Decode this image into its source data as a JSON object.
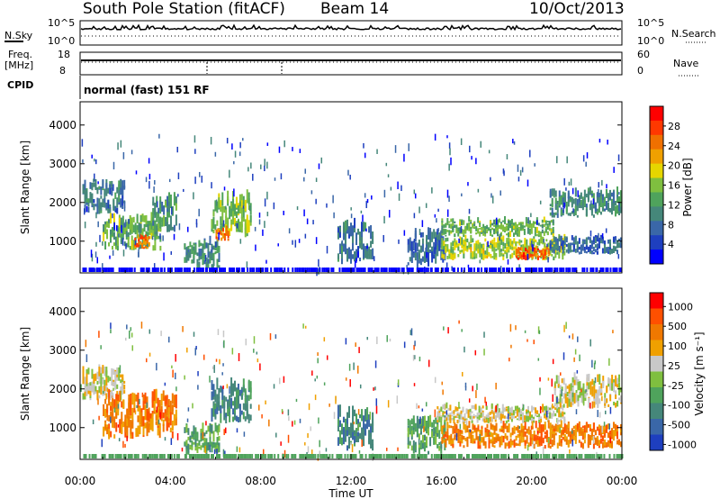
{
  "header": {
    "station": "South Pole Station (fitACF)",
    "beam": "Beam 14",
    "date": "10/Oct/2013"
  },
  "noise_panel": {
    "left_label": "N.Sky",
    "right_label": "N.Search",
    "left_ticks": [
      "10^5",
      "10^0"
    ],
    "right_ticks": [
      "10^5",
      "10^0"
    ]
  },
  "freq_panel": {
    "left_label_1": "Freq.",
    "left_label_2": "[MHz]",
    "right_label": "Nave",
    "left_ticks": [
      "18",
      "8"
    ],
    "right_ticks": [
      "60",
      "0"
    ]
  },
  "cpid": {
    "label": "CPID",
    "value": "normal (fast) 151 RF"
  },
  "colors": {
    "power": [
      "#0000ff",
      "#1e3fbf",
      "#3a67a8",
      "#45877a",
      "#4fa35c",
      "#7fbf3f",
      "#e6d600",
      "#f0a000",
      "#f07000",
      "#ff3800",
      "#ff0000"
    ],
    "velocity": [
      "#1e3fbf",
      "#3a67a8",
      "#45877a",
      "#4fa35c",
      "#7fbf3f",
      "#c8c8c8",
      "#f0a000",
      "#f07800",
      "#ff5000",
      "#ff0000"
    ]
  },
  "chart_data": [
    {
      "type": "heatmap",
      "name": "Power",
      "ylabel": "Slant Range [km]",
      "yticks": [
        1000,
        2000,
        3000,
        4000
      ],
      "ylim": [
        180,
        4600
      ],
      "xlim": [
        0,
        24
      ],
      "colorbar": {
        "label": "Power [dB]",
        "range": [
          0,
          32
        ],
        "ticks": [
          "4",
          "8",
          "12",
          "16",
          "20",
          "24",
          "28"
        ]
      },
      "regions": [
        {
          "t0": 0.1,
          "t1": 2.0,
          "r0": 1700,
          "r1": 2400,
          "v": 8
        },
        {
          "t0": 1.0,
          "t1": 3.6,
          "r0": 750,
          "r1": 1500,
          "v": 14
        },
        {
          "t0": 2.4,
          "t1": 3.1,
          "r0": 800,
          "r1": 1100,
          "v": 26
        },
        {
          "t0": 3.2,
          "t1": 4.3,
          "r0": 1200,
          "r1": 2000,
          "v": 11
        },
        {
          "t0": 4.6,
          "t1": 6.2,
          "r0": 300,
          "r1": 900,
          "v": 10
        },
        {
          "t0": 5.8,
          "t1": 7.6,
          "r0": 1100,
          "r1": 2000,
          "v": 15
        },
        {
          "t0": 6.0,
          "t1": 6.6,
          "r0": 1000,
          "r1": 1300,
          "v": 25
        },
        {
          "t0": 11.4,
          "t1": 13.0,
          "r0": 400,
          "r1": 1300,
          "v": 8
        },
        {
          "t0": 14.5,
          "t1": 16.2,
          "r0": 300,
          "r1": 1100,
          "v": 7
        },
        {
          "t0": 16.0,
          "t1": 21.5,
          "r0": 500,
          "r1": 1000,
          "v": 17
        },
        {
          "t0": 19.3,
          "t1": 20.8,
          "r0": 500,
          "r1": 800,
          "v": 27
        },
        {
          "t0": 16.0,
          "t1": 21.0,
          "r0": 1100,
          "r1": 1500,
          "v": 14
        },
        {
          "t0": 20.8,
          "t1": 24.0,
          "r0": 1600,
          "r1": 2200,
          "v": 10
        },
        {
          "t0": 20.8,
          "t1": 24.0,
          "r0": 650,
          "r1": 1050,
          "v": 7
        }
      ]
    },
    {
      "type": "heatmap",
      "name": "Velocity",
      "ylabel": "Slant Range [km]",
      "yticks": [
        1000,
        2000,
        3000,
        4000
      ],
      "ylim": [
        180,
        4600
      ],
      "xlim": [
        0,
        24
      ],
      "colorbar": {
        "label": "Velocity [m s⁻¹]",
        "ticks": [
          "1000",
          "500",
          "100",
          "25",
          "-25",
          "-100",
          "-500",
          "-1000"
        ]
      },
      "regions": [
        {
          "t0": 0.1,
          "t1": 2.0,
          "r0": 1700,
          "r1": 2400,
          "v": 5
        },
        {
          "t0": 1.0,
          "t1": 4.3,
          "r0": 700,
          "r1": 1700,
          "v": 7
        },
        {
          "t0": 4.6,
          "t1": 6.2,
          "r0": 300,
          "r1": 900,
          "v": 3
        },
        {
          "t0": 5.8,
          "t1": 7.6,
          "r0": 1100,
          "r1": 2000,
          "v": 2
        },
        {
          "t0": 11.4,
          "t1": 13.0,
          "r0": 400,
          "r1": 1300,
          "v": 2
        },
        {
          "t0": 14.5,
          "t1": 16.2,
          "r0": 300,
          "r1": 1100,
          "v": 3
        },
        {
          "t0": 15.8,
          "t1": 21.5,
          "r0": 1100,
          "r1": 1500,
          "v": 5
        },
        {
          "t0": 16.0,
          "t1": 24.0,
          "r0": 450,
          "r1": 1000,
          "v": 7
        },
        {
          "t0": 21.0,
          "t1": 24.0,
          "r0": 1500,
          "r1": 2200,
          "v": 5
        }
      ]
    }
  ],
  "x_axis": {
    "ticks": [
      "00:00",
      "04:00",
      "08:00",
      "12:00",
      "16:00",
      "20:00",
      "00:00"
    ],
    "label": "Time UT"
  }
}
